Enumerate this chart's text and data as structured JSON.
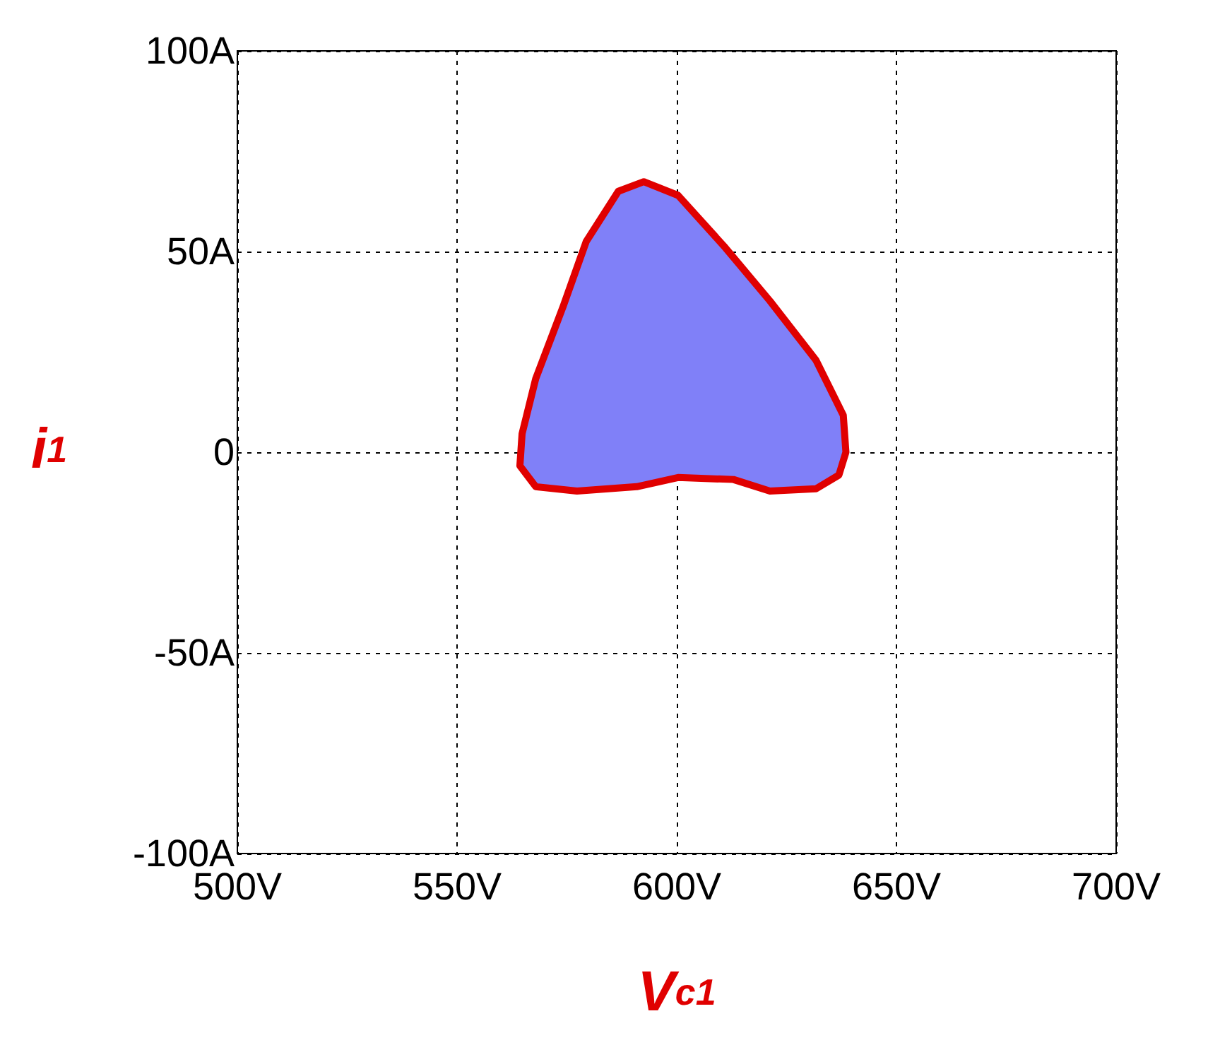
{
  "chart_data": {
    "type": "area",
    "xlabel": "V$_{c1}$",
    "ylabel": "i$_{1}$",
    "xlim": [
      500,
      700
    ],
    "ylim": [
      -100,
      100
    ],
    "xticks": [
      {
        "value": 500,
        "label": "500V"
      },
      {
        "value": 550,
        "label": "550V"
      },
      {
        "value": 600,
        "label": "600V"
      },
      {
        "value": 650,
        "label": "650V"
      },
      {
        "value": 700,
        "label": "700V"
      }
    ],
    "yticks": [
      {
        "value": -100,
        "label": "-100A"
      },
      {
        "value": -50,
        "label": "-50A"
      },
      {
        "value": 0,
        "label": "0"
      },
      {
        "value": 50,
        "label": "50A"
      },
      {
        "value": 100,
        "label": "100A"
      }
    ],
    "grid": true,
    "series": [
      {
        "color": "#8080f8",
        "x": [
          592.5,
          600.3,
          610.7,
          621.2,
          631.7,
          637.9,
          638.5,
          636.9,
          631.7,
          621.2,
          612.9,
          600.3,
          590.9,
          577.3,
          567.9,
          564.3,
          564.8,
          567.9,
          574.2,
          579.4,
          586.7,
          592.5
        ],
        "values": [
          67.4,
          64,
          51.4,
          37.7,
          22.9,
          9.2,
          0,
          -5.7,
          -9.1,
          -9.7,
          -6.8,
          -6.3,
          -8.6,
          -9.7,
          -8.6,
          -3.4,
          4.6,
          18.3,
          36.5,
          52.5,
          65,
          67.4
        ]
      }
    ]
  }
}
